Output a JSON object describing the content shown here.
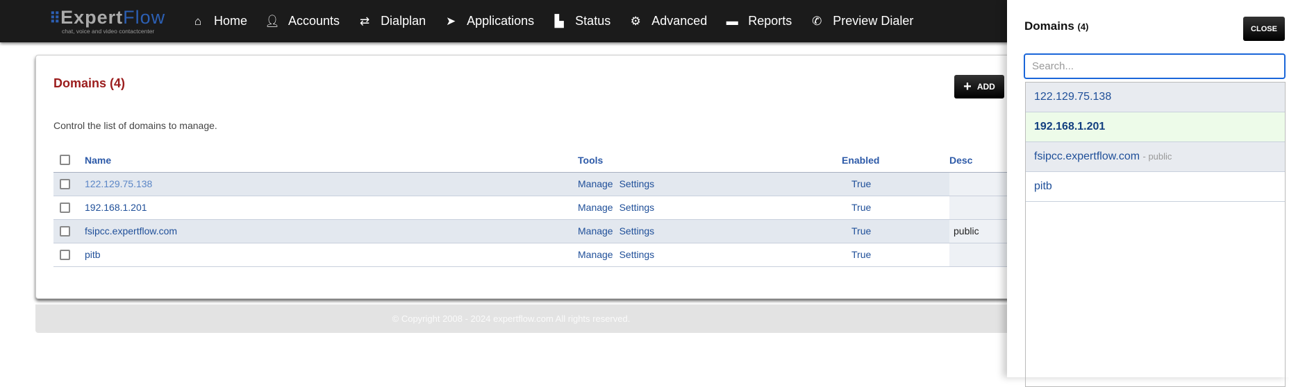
{
  "nav": {
    "logo_main": "Expert",
    "logo_accent": "Flow",
    "logo_sub": "chat, voice and video contactcenter",
    "items": [
      {
        "label": "Home",
        "icon": "home-icon"
      },
      {
        "label": "Accounts",
        "icon": "user-icon"
      },
      {
        "label": "Dialplan",
        "icon": "exchange-icon"
      },
      {
        "label": "Applications",
        "icon": "paper-plane-icon"
      },
      {
        "label": "Status",
        "icon": "bar-chart-icon"
      },
      {
        "label": "Advanced",
        "icon": "gear-icon"
      },
      {
        "label": "Reports",
        "icon": "report-icon"
      },
      {
        "label": "Preview Dialer",
        "icon": "phone-icon"
      }
    ]
  },
  "main": {
    "title": "Domains (4)",
    "add_label": "ADD",
    "description": "Control the list of domains to manage.",
    "columns": {
      "name": "Name",
      "tools": "Tools",
      "enabled": "Enabled",
      "description": "Desc"
    },
    "rows": [
      {
        "name": "122.129.75.138",
        "manage": "Manage",
        "settings": "Settings",
        "enabled": "True",
        "description": ""
      },
      {
        "name": "192.168.1.201",
        "manage": "Manage",
        "settings": "Settings",
        "enabled": "True",
        "description": ""
      },
      {
        "name": "fsipcc.expertflow.com",
        "manage": "Manage",
        "settings": "Settings",
        "enabled": "True",
        "description": "public"
      },
      {
        "name": "pitb",
        "manage": "Manage",
        "settings": "Settings",
        "enabled": "True",
        "description": ""
      }
    ]
  },
  "footer": {
    "copyright": "© Copyright 2008 - 2024 expertflow.com All rights reserved."
  },
  "panel": {
    "title": "Domains",
    "count": "(4)",
    "close_label": "CLOSE",
    "search_placeholder": "Search...",
    "items": [
      {
        "name": "122.129.75.138",
        "desc": ""
      },
      {
        "name": "192.168.1.201",
        "desc": ""
      },
      {
        "name": "fsipcc.expertflow.com",
        "desc": "- public"
      },
      {
        "name": "pitb",
        "desc": ""
      }
    ]
  },
  "colors": {
    "title": "#9b1c1c",
    "link": "#1f4f99",
    "active_item": "#edfbe9",
    "nav_bg": "#1b1b1b"
  }
}
